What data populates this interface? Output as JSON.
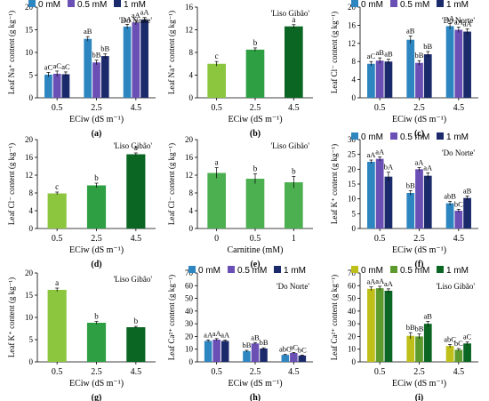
{
  "colors": {
    "do_norte": [
      "#2E86C1",
      "#6A4FB5",
      "#1B2A6B"
    ],
    "liso_bars": [
      "#8CC63F",
      "#2EA043",
      "#0B6623"
    ],
    "liso_i": [
      "#BFBF1A",
      "#5E9B2E",
      "#0B6623"
    ],
    "carnitine": "#4CAF50"
  },
  "chart_data": [
    {
      "id": "a",
      "type": "bar",
      "panel_label": "(a)",
      "cultivar": "'Do Norte'",
      "ylabel": "Leaf Na⁺ content (g kg⁻¹)",
      "xlabel": "ECiw (dS m⁻¹)",
      "ylim": [
        0,
        20
      ],
      "yticks": [
        0,
        5,
        10,
        15,
        20
      ],
      "categories": [
        "0.5",
        "2.5",
        "4.5"
      ],
      "legend": true,
      "palette": "do_norte",
      "series": [
        {
          "name": "0 mM",
          "values": [
            5.1,
            13.0,
            15.7
          ],
          "errors": [
            0.5,
            0.5,
            0.5
          ],
          "letters": [
            "aC",
            "aB",
            "aA"
          ]
        },
        {
          "name": "0.5 mM",
          "values": [
            5.3,
            7.8,
            16.6
          ],
          "errors": [
            0.6,
            0.5,
            0.5
          ],
          "letters": [
            "aC",
            "bB",
            "aA"
          ]
        },
        {
          "name": "1 mM",
          "values": [
            5.2,
            9.2,
            17.2
          ],
          "errors": [
            0.5,
            0.5,
            0.5
          ],
          "letters": [
            "aC",
            "bB",
            "aA"
          ]
        }
      ]
    },
    {
      "id": "b",
      "type": "bar",
      "panel_label": "(b)",
      "cultivar": "'Liso Gibão'",
      "ylabel": "Leaf Na⁺ content (g kg⁻¹)",
      "xlabel": "ECiw (dS m⁻¹)",
      "ylim": [
        0,
        16
      ],
      "yticks": [
        0,
        4,
        8,
        12,
        16
      ],
      "categories": [
        "0.5",
        "2.5",
        "4.5"
      ],
      "legend": false,
      "palette": "liso_bars",
      "per_bar_colors": true,
      "series": [
        {
          "name": "",
          "values": [
            6.0,
            8.5,
            12.6
          ],
          "errors": [
            0.4,
            0.3,
            0.3
          ],
          "letters": [
            "c",
            "b",
            "a"
          ]
        }
      ]
    },
    {
      "id": "c",
      "type": "bar",
      "panel_label": "(c)",
      "cultivar": "'Do Norte'",
      "ylabel": "Leaf Cl⁻ content (g kg⁻¹)",
      "xlabel": "ECiw (dS m⁻¹)",
      "ylim": [
        0,
        20
      ],
      "yticks": [
        0,
        4,
        8,
        12,
        16,
        20
      ],
      "categories": [
        "0.5",
        "2.5",
        "4.5"
      ],
      "legend": true,
      "palette": "do_norte",
      "series": [
        {
          "name": "0 mM",
          "values": [
            7.5,
            12.8,
            15.8
          ],
          "errors": [
            0.5,
            0.8,
            0.6
          ],
          "letters": [
            "aC",
            "aB",
            "aA"
          ]
        },
        {
          "name": "0.5 mM",
          "values": [
            8.2,
            7.7,
            15.0
          ],
          "errors": [
            0.6,
            0.5,
            0.6
          ],
          "letters": [
            "aB",
            "bB",
            "aA"
          ]
        },
        {
          "name": "1 mM",
          "values": [
            8.0,
            9.6,
            14.6
          ],
          "errors": [
            0.5,
            0.6,
            0.6
          ],
          "letters": [
            "aB",
            "bB",
            "aA"
          ]
        }
      ]
    },
    {
      "id": "d",
      "type": "bar",
      "panel_label": "(d)",
      "cultivar": "'Liso Gibão'",
      "ylabel": "Leaf Cl⁻ content (g kg⁻¹)",
      "xlabel": "ECiw (dS m⁻¹)",
      "ylim": [
        0,
        20
      ],
      "yticks": [
        0,
        4,
        8,
        12,
        16,
        20
      ],
      "categories": [
        "0.5",
        "2.5",
        "4.5"
      ],
      "legend": false,
      "palette": "liso_bars",
      "per_bar_colors": true,
      "series": [
        {
          "name": "",
          "values": [
            7.9,
            9.7,
            16.7
          ],
          "errors": [
            0.3,
            0.5,
            0.3
          ],
          "letters": [
            "c",
            "b",
            "a"
          ]
        }
      ]
    },
    {
      "id": "e",
      "type": "bar",
      "panel_label": "(e)",
      "cultivar": "'Liso Gibão'",
      "ylabel": "Leaf Cl⁻ content (g kg⁻¹)",
      "xlabel": "Carnitine (mM)",
      "ylim": [
        0,
        20
      ],
      "yticks": [
        0,
        4,
        8,
        12,
        16,
        20
      ],
      "categories": [
        "0",
        "0.5",
        "1"
      ],
      "legend": false,
      "palette": "carnitine",
      "per_bar_colors": false,
      "series": [
        {
          "name": "",
          "values": [
            12.5,
            11.2,
            10.4
          ],
          "errors": [
            1.2,
            1.1,
            1.3
          ],
          "letters": [
            "a",
            "b",
            "b"
          ]
        }
      ]
    },
    {
      "id": "f",
      "type": "bar",
      "panel_label": "(f)",
      "cultivar": "'Do Norte'",
      "ylabel": "Leaf K⁺ content (g kg⁻¹)",
      "xlabel": "ECiw (dS m⁻¹)",
      "ylim": [
        0,
        30
      ],
      "yticks": [
        0,
        5,
        10,
        15,
        20,
        25,
        30
      ],
      "categories": [
        "0.5",
        "2.5",
        "4.5"
      ],
      "legend": true,
      "palette": "do_norte",
      "series": [
        {
          "name": "0 mM",
          "values": [
            22.5,
            12.0,
            8.5
          ],
          "errors": [
            0.6,
            0.8,
            0.7
          ],
          "letters": [
            "aA",
            "bB",
            "abB"
          ]
        },
        {
          "name": "0.5 mM",
          "values": [
            23.5,
            20.0,
            6.0
          ],
          "errors": [
            0.7,
            0.6,
            0.5
          ],
          "letters": [
            "aA",
            "aA",
            "bC"
          ]
        },
        {
          "name": "1 mM",
          "values": [
            17.5,
            17.8,
            10.3
          ],
          "errors": [
            1.5,
            1.0,
            0.7
          ],
          "letters": [
            "bA",
            "aA",
            "aB"
          ]
        }
      ]
    },
    {
      "id": "g",
      "type": "bar",
      "panel_label": "(g)",
      "cultivar": "'Liso Gibão'",
      "ylabel": "Leaf K⁺ content (g kg⁻¹)",
      "xlabel": "ECiw (dS m⁻¹)",
      "ylim": [
        0,
        20
      ],
      "yticks": [
        0,
        5,
        10,
        15,
        20
      ],
      "categories": [
        "0.5",
        "2.5",
        "4.5"
      ],
      "legend": false,
      "palette": "liso_bars",
      "per_bar_colors": true,
      "series": [
        {
          "name": "",
          "values": [
            16.2,
            8.8,
            7.8
          ],
          "errors": [
            0.4,
            0.3,
            0.2
          ],
          "letters": [
            "a",
            "b",
            "b"
          ]
        }
      ]
    },
    {
      "id": "h",
      "type": "bar",
      "panel_label": "(h)",
      "cultivar": "'Do Norte'",
      "ylabel": "Leaf Ca²⁺ content (g kg⁻¹)",
      "xlabel": "ECiw (dS m⁻¹)",
      "ylim": [
        0,
        70
      ],
      "yticks": [
        0,
        10,
        20,
        30,
        40,
        50,
        60,
        70
      ],
      "categories": [
        "0.5",
        "2.5",
        "4.5"
      ],
      "legend": true,
      "palette": "do_norte",
      "series": [
        {
          "name": "0 mM",
          "values": [
            16.5,
            8.5,
            5.5
          ],
          "errors": [
            0.8,
            0.6,
            0.4
          ],
          "letters": [
            "aA",
            "bB",
            "abC"
          ]
        },
        {
          "name": "0.5 mM",
          "values": [
            17.5,
            14.5,
            7.0
          ],
          "errors": [
            0.8,
            0.7,
            0.4
          ],
          "letters": [
            "aA",
            "aB",
            "aC"
          ]
        },
        {
          "name": "1 mM",
          "values": [
            16.5,
            10.5,
            5.0
          ],
          "errors": [
            0.7,
            0.6,
            0.4
          ],
          "letters": [
            "aA",
            "bB",
            "bC"
          ]
        }
      ]
    },
    {
      "id": "i",
      "type": "bar",
      "panel_label": "(i)",
      "cultivar": "'Liso Gibão'",
      "ylabel": "Leaf Ca²⁺ content (g kg⁻¹)",
      "xlabel": "ECiw (dS m⁻¹)",
      "ylim": [
        0,
        70
      ],
      "yticks": [
        0,
        10,
        20,
        30,
        40,
        50,
        60,
        70
      ],
      "categories": [
        "0.5",
        "2.5",
        "4.5"
      ],
      "legend": true,
      "palette": "liso_i",
      "series": [
        {
          "name": "0 mM",
          "values": [
            57.5,
            20.5,
            12.5
          ],
          "errors": [
            1.5,
            2.5,
            1.2
          ],
          "letters": [
            "aA",
            "bB",
            "abC"
          ]
        },
        {
          "name": "0.5 mM",
          "values": [
            58.0,
            20.0,
            9.5
          ],
          "errors": [
            1.5,
            2.0,
            1.0
          ],
          "letters": [
            "aA",
            "bB",
            "bC"
          ]
        },
        {
          "name": "1 mM",
          "values": [
            56.0,
            30.0,
            14.5
          ],
          "errors": [
            1.5,
            1.8,
            1.2
          ],
          "letters": [
            "aA",
            "aB",
            "aC"
          ]
        }
      ]
    }
  ]
}
